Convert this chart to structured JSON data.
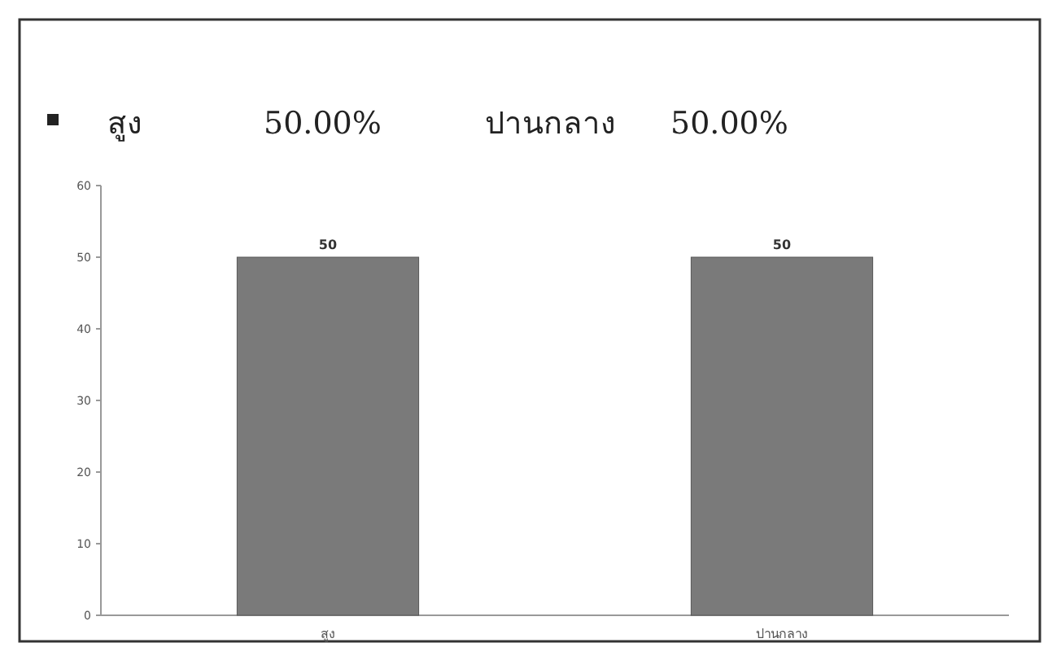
{
  "chart_data": {
    "type": "bar",
    "categories": [
      "สูง",
      "ปานกลาง"
    ],
    "values": [
      50,
      50
    ],
    "color": "#7a7a7a",
    "ylim": [
      0,
      60
    ],
    "yticks": [
      0,
      10,
      20,
      30,
      40,
      50,
      60
    ],
    "data_labels": true,
    "grid": false,
    "annotations": [
      "สูง",
      "50.00%",
      "ปานกลาง",
      "50.00%"
    ]
  }
}
